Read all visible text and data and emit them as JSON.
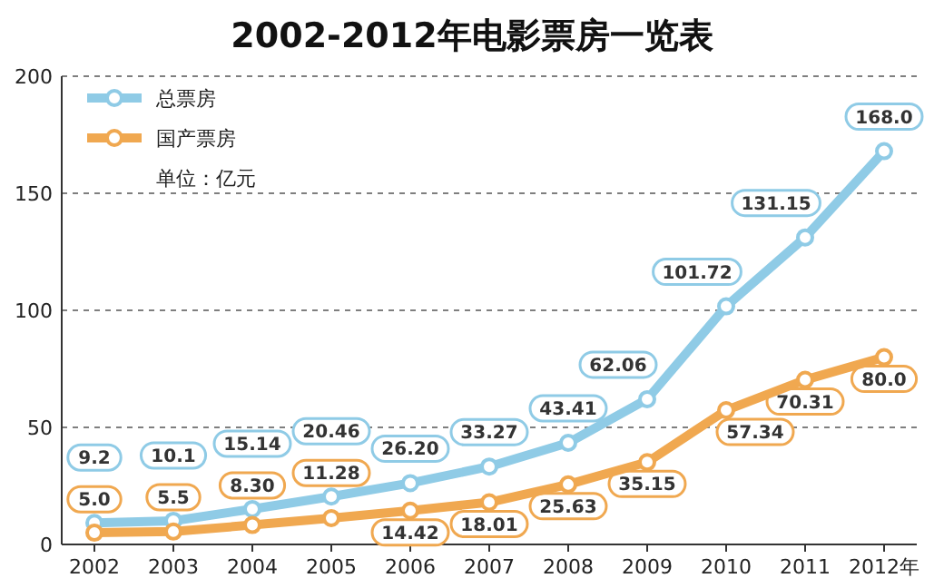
{
  "chart_data": {
    "type": "line",
    "title": "2002-2012年电影票房一览表",
    "categories": [
      "2002",
      "2003",
      "2004",
      "2005",
      "2006",
      "2007",
      "2008",
      "2009",
      "2010",
      "2011",
      "2012年"
    ],
    "series": [
      {
        "name": "总票房",
        "color": "#8fcbe6",
        "values": [
          9.2,
          10.1,
          15.14,
          20.46,
          26.2,
          33.27,
          43.41,
          62.06,
          101.72,
          131.15,
          168.0
        ],
        "value_labels": [
          "9.2",
          "10.1",
          "15.14",
          "20.46",
          "26.20",
          "33.27",
          "43.41",
          "62.06",
          "101.72",
          "131.15",
          "168.0"
        ]
      },
      {
        "name": "国产票房",
        "color": "#f0a850",
        "values": [
          5.0,
          5.5,
          8.3,
          11.28,
          14.42,
          18.01,
          25.63,
          35.15,
          57.34,
          70.31,
          80.0
        ],
        "value_labels": [
          "5.0",
          "5.5",
          "8.30",
          "11.28",
          "14.42",
          "18.01",
          "25.63",
          "35.15",
          "57.34",
          "70.31",
          "80.0"
        ]
      }
    ],
    "ylim": [
      0,
      200
    ],
    "yticks": [
      0,
      50,
      100,
      150,
      200
    ],
    "grid": "y",
    "legend": "top left",
    "marker": "circle",
    "line_style": "solid",
    "annotations": [
      "单位：亿元"
    ]
  }
}
